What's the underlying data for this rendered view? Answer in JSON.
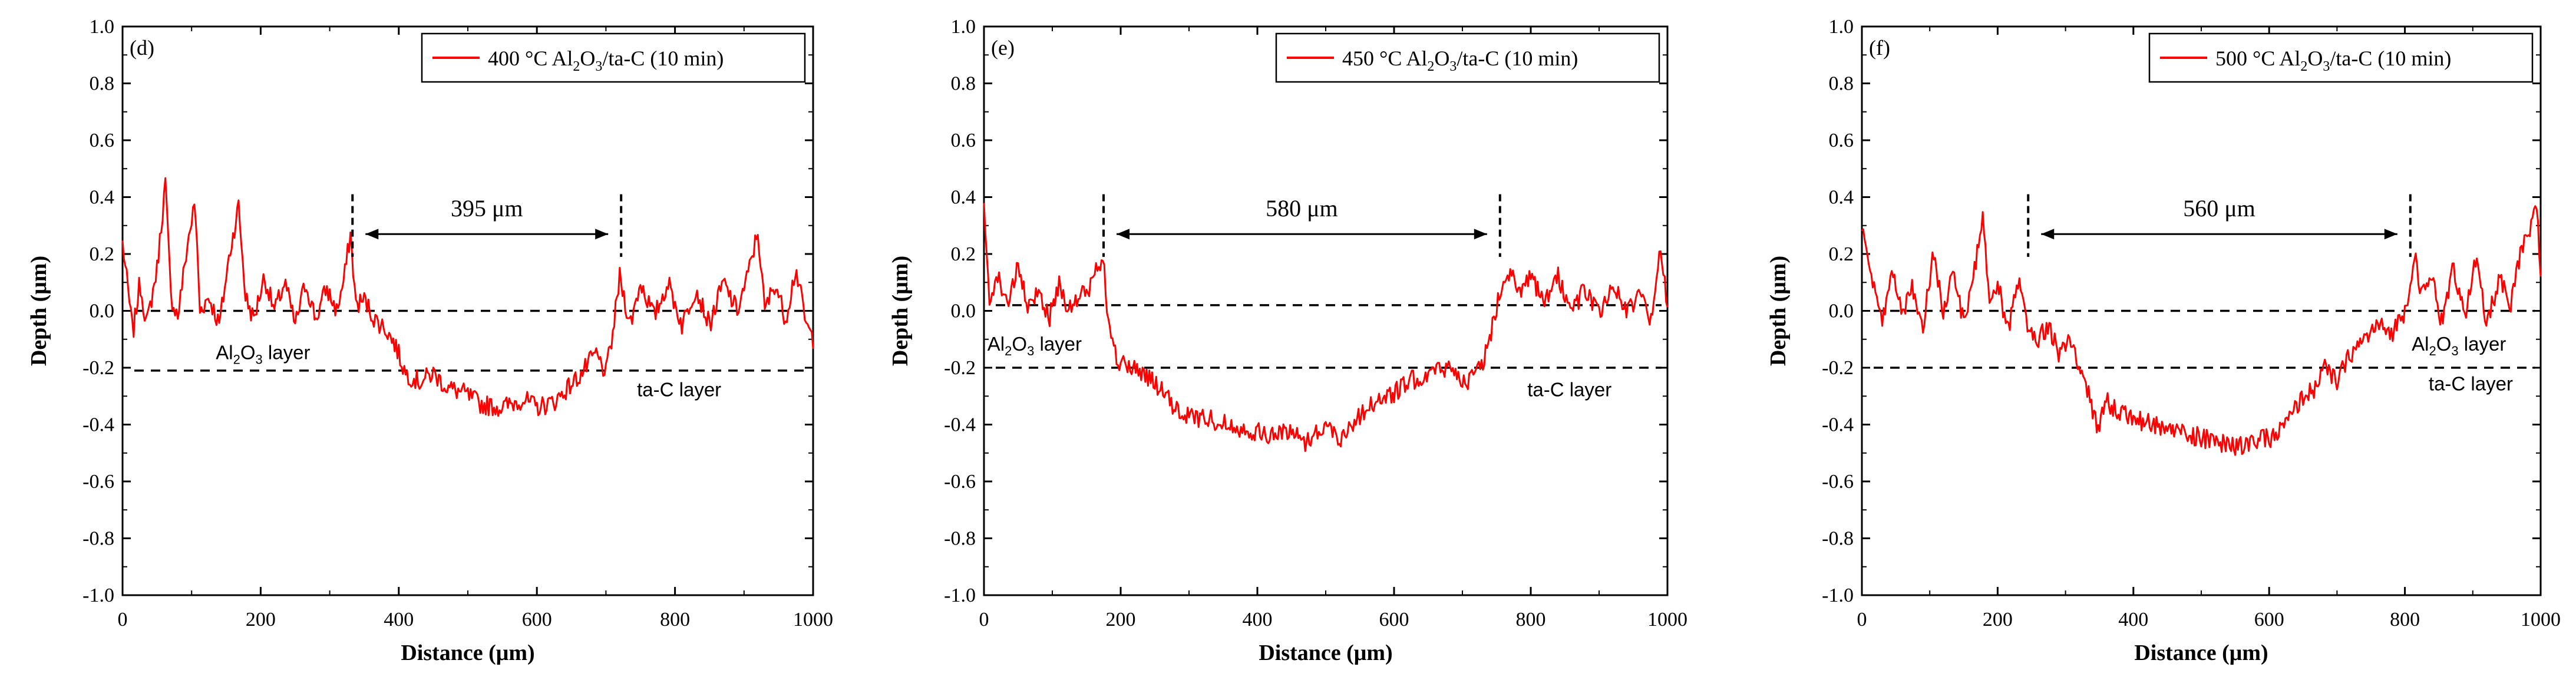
{
  "chart_data": [
    {
      "type": "line",
      "panel_label": "(d)",
      "legend": {
        "prefix": "400 °C Al",
        "sub1": "2",
        "mid": "O",
        "sub2": "3",
        "suffix": "/ta-C (10 min)"
      },
      "xlabel": "Distance (μm)",
      "ylabel": "Depth (μm)",
      "xlim": [
        0,
        1000
      ],
      "ylim": [
        -1.0,
        1.0
      ],
      "x_ticks": [
        "0",
        "200",
        "400",
        "600",
        "800",
        "1000"
      ],
      "y_ticks": [
        "1.0",
        "0.8",
        "0.6",
        "0.4",
        "0.2",
        "0.0",
        "-0.2",
        "-0.4",
        "-0.6",
        "-0.8",
        "-1.0"
      ],
      "series": [
        {
          "name": "400 °C Al2O3/ta-C (10 min)",
          "color": "#ff0000",
          "anchors": [
            [
              0,
              0.24
            ],
            [
              15,
              -0.08
            ],
            [
              25,
              0.1
            ],
            [
              35,
              -0.05
            ],
            [
              50,
              0.15
            ],
            [
              62,
              0.45
            ],
            [
              70,
              0.05
            ],
            [
              80,
              -0.02
            ],
            [
              95,
              0.25
            ],
            [
              105,
              0.38
            ],
            [
              112,
              0.0
            ],
            [
              125,
              0.05
            ],
            [
              140,
              -0.05
            ],
            [
              155,
              0.2
            ],
            [
              168,
              0.37
            ],
            [
              178,
              0.05
            ],
            [
              190,
              -0.03
            ],
            [
              205,
              0.12
            ],
            [
              220,
              0.0
            ],
            [
              235,
              0.1
            ],
            [
              250,
              -0.05
            ],
            [
              265,
              0.1
            ],
            [
              280,
              -0.03
            ],
            [
              295,
              0.08
            ],
            [
              310,
              0.0
            ],
            [
              320,
              0.1
            ],
            [
              330,
              0.27
            ],
            [
              338,
              0.02
            ],
            [
              350,
              0.04
            ],
            [
              365,
              -0.03
            ],
            [
              380,
              -0.06
            ],
            [
              395,
              -0.12
            ],
            [
              410,
              -0.22
            ],
            [
              430,
              -0.25
            ],
            [
              450,
              -0.22
            ],
            [
              470,
              -0.27
            ],
            [
              495,
              -0.29
            ],
            [
              520,
              -0.33
            ],
            [
              550,
              -0.34
            ],
            [
              580,
              -0.31
            ],
            [
              600,
              -0.34
            ],
            [
              625,
              -0.32
            ],
            [
              645,
              -0.27
            ],
            [
              665,
              -0.22
            ],
            [
              685,
              -0.15
            ],
            [
              700,
              -0.22
            ],
            [
              710,
              -0.08
            ],
            [
              720,
              0.12
            ],
            [
              735,
              -0.05
            ],
            [
              750,
              0.1
            ],
            [
              770,
              -0.02
            ],
            [
              790,
              0.1
            ],
            [
              810,
              -0.05
            ],
            [
              830,
              0.08
            ],
            [
              850,
              -0.05
            ],
            [
              870,
              0.1
            ],
            [
              890,
              0.0
            ],
            [
              905,
              0.12
            ],
            [
              920,
              0.28
            ],
            [
              930,
              0.0
            ],
            [
              945,
              0.1
            ],
            [
              960,
              -0.03
            ],
            [
              975,
              0.15
            ],
            [
              990,
              -0.05
            ],
            [
              1000,
              -0.1
            ]
          ]
        }
      ],
      "dashed_levels": [
        0.0,
        -0.21
      ],
      "width_marker": {
        "x1": 333,
        "x2": 722,
        "label": "395 μm"
      },
      "annotations": [
        {
          "prefix": "Al",
          "sub": "2",
          "mid": "O",
          "sub2": "3",
          "suffix": " layer",
          "x": 135,
          "y": -0.17
        },
        {
          "text": "ta-C layer",
          "x": 745,
          "y": -0.3
        }
      ]
    },
    {
      "type": "line",
      "panel_label": "(e)",
      "legend": {
        "prefix": "450 °C Al",
        "sub1": "2",
        "mid": "O",
        "sub2": "3",
        "suffix": "/ta-C (10 min)"
      },
      "xlabel": "Distance (μm)",
      "ylabel": "Depth (μm)",
      "xlim": [
        0,
        1000
      ],
      "ylim": [
        -1.0,
        1.0
      ],
      "x_ticks": [
        "0",
        "200",
        "400",
        "600",
        "800",
        "1000"
      ],
      "y_ticks": [
        "1.0",
        "0.8",
        "0.6",
        "0.4",
        "0.2",
        "0.0",
        "-0.2",
        "-0.4",
        "-0.6",
        "-0.8",
        "-1.0"
      ],
      "series": [
        {
          "name": "450 °C Al2O3/ta-C (10 min)",
          "color": "#ff0000",
          "anchors": [
            [
              0,
              0.35
            ],
            [
              8,
              0.05
            ],
            [
              20,
              0.12
            ],
            [
              35,
              0.03
            ],
            [
              50,
              0.15
            ],
            [
              65,
              0.0
            ],
            [
              80,
              0.08
            ],
            [
              95,
              -0.03
            ],
            [
              110,
              0.1
            ],
            [
              125,
              0.0
            ],
            [
              140,
              0.05
            ],
            [
              155,
              0.08
            ],
            [
              165,
              0.15
            ],
            [
              175,
              0.2
            ],
            [
              182,
              -0.05
            ],
            [
              195,
              -0.18
            ],
            [
              215,
              -0.2
            ],
            [
              235,
              -0.22
            ],
            [
              260,
              -0.28
            ],
            [
              280,
              -0.35
            ],
            [
              300,
              -0.37
            ],
            [
              330,
              -0.38
            ],
            [
              360,
              -0.4
            ],
            [
              390,
              -0.42
            ],
            [
              420,
              -0.44
            ],
            [
              450,
              -0.42
            ],
            [
              470,
              -0.46
            ],
            [
              500,
              -0.4
            ],
            [
              520,
              -0.45
            ],
            [
              545,
              -0.38
            ],
            [
              570,
              -0.32
            ],
            [
              595,
              -0.3
            ],
            [
              620,
              -0.25
            ],
            [
              650,
              -0.22
            ],
            [
              680,
              -0.2
            ],
            [
              710,
              -0.25
            ],
            [
              730,
              -0.18
            ],
            [
              742,
              -0.08
            ],
            [
              755,
              0.08
            ],
            [
              770,
              0.15
            ],
            [
              785,
              0.05
            ],
            [
              800,
              0.12
            ],
            [
              820,
              0.02
            ],
            [
              840,
              0.12
            ],
            [
              860,
              0.0
            ],
            [
              880,
              0.08
            ],
            [
              900,
              -0.02
            ],
            [
              920,
              0.1
            ],
            [
              940,
              0.0
            ],
            [
              960,
              0.05
            ],
            [
              975,
              -0.03
            ],
            [
              990,
              0.22
            ],
            [
              1000,
              0.0
            ]
          ]
        }
      ],
      "dashed_levels": [
        0.02,
        -0.2
      ],
      "width_marker": {
        "x1": 175,
        "x2": 755,
        "label": "580 μm"
      },
      "annotations": [
        {
          "prefix": "Al",
          "sub": "2",
          "mid": "O",
          "sub2": "3",
          "suffix": " layer",
          "x": 5,
          "y": -0.14
        },
        {
          "text": "ta-C layer",
          "x": 795,
          "y": -0.3
        }
      ]
    },
    {
      "type": "line",
      "panel_label": "(f)",
      "legend": {
        "prefix": "500 °C Al",
        "sub1": "2",
        "mid": "O",
        "sub2": "3",
        "suffix": "/ta-C (10 min)"
      },
      "xlabel": "Distance (μm)",
      "ylabel": "Depth (μm)",
      "xlim": [
        0,
        1000
      ],
      "ylim": [
        -1.0,
        1.0
      ],
      "x_ticks": [
        "0",
        "200",
        "400",
        "600",
        "800",
        "1000"
      ],
      "y_ticks": [
        "1.0",
        "0.8",
        "0.6",
        "0.4",
        "0.2",
        "0.0",
        "-0.2",
        "-0.4",
        "-0.6",
        "-0.8",
        "-1.0"
      ],
      "series": [
        {
          "name": "500 °C Al2O3/ta-C (10 min)",
          "color": "#ff0000",
          "anchors": [
            [
              0,
              0.3
            ],
            [
              15,
              0.1
            ],
            [
              30,
              -0.05
            ],
            [
              45,
              0.15
            ],
            [
              60,
              0.0
            ],
            [
              75,
              0.08
            ],
            [
              90,
              -0.05
            ],
            [
              105,
              0.2
            ],
            [
              120,
              0.0
            ],
            [
              135,
              0.15
            ],
            [
              150,
              -0.05
            ],
            [
              165,
              0.12
            ],
            [
              178,
              0.35
            ],
            [
              188,
              0.0
            ],
            [
              200,
              0.1
            ],
            [
              215,
              -0.08
            ],
            [
              230,
              0.1
            ],
            [
              245,
              -0.05
            ],
            [
              260,
              -0.1
            ],
            [
              275,
              -0.05
            ],
            [
              290,
              -0.15
            ],
            [
              305,
              -0.1
            ],
            [
              320,
              -0.2
            ],
            [
              335,
              -0.3
            ],
            [
              348,
              -0.42
            ],
            [
              360,
              -0.32
            ],
            [
              380,
              -0.35
            ],
            [
              400,
              -0.38
            ],
            [
              430,
              -0.4
            ],
            [
              460,
              -0.42
            ],
            [
              490,
              -0.44
            ],
            [
              520,
              -0.46
            ],
            [
              550,
              -0.48
            ],
            [
              580,
              -0.46
            ],
            [
              610,
              -0.44
            ],
            [
              630,
              -0.38
            ],
            [
              650,
              -0.3
            ],
            [
              665,
              -0.28
            ],
            [
              680,
              -0.2
            ],
            [
              700,
              -0.25
            ],
            [
              720,
              -0.15
            ],
            [
              740,
              -0.1
            ],
            [
              760,
              -0.05
            ],
            [
              780,
              -0.08
            ],
            [
              800,
              0.0
            ],
            [
              815,
              0.2
            ],
            [
              825,
              0.05
            ],
            [
              840,
              0.12
            ],
            [
              855,
              -0.05
            ],
            [
              870,
              0.15
            ],
            [
              890,
              0.0
            ],
            [
              905,
              0.18
            ],
            [
              920,
              -0.05
            ],
            [
              940,
              0.12
            ],
            [
              955,
              0.0
            ],
            [
              970,
              0.2
            ],
            [
              985,
              0.28
            ],
            [
              995,
              0.38
            ],
            [
              1000,
              0.1
            ]
          ]
        }
      ],
      "dashed_levels": [
        0.0,
        -0.2
      ],
      "width_marker": {
        "x1": 245,
        "x2": 808,
        "label": "560 μm"
      },
      "annotations": [
        {
          "prefix": "Al",
          "sub": "2",
          "mid": "O",
          "sub2": "3",
          "suffix": " layer",
          "x": 810,
          "y": -0.14
        },
        {
          "text": "ta-C layer",
          "x": 835,
          "y": -0.28
        }
      ]
    }
  ]
}
